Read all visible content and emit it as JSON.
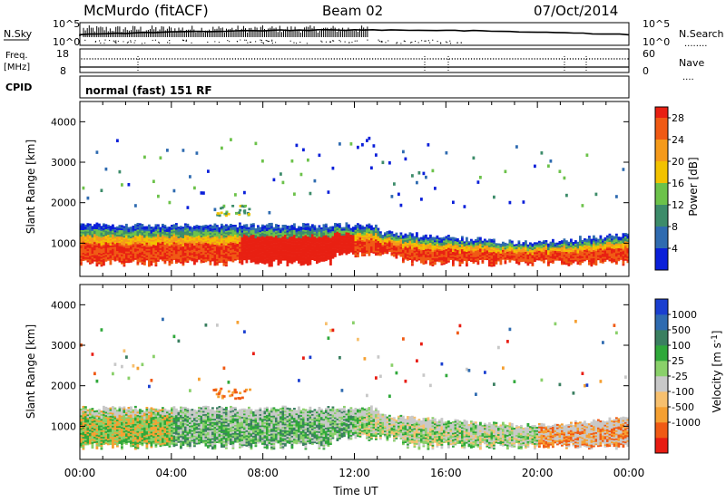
{
  "header": {
    "station": "McMurdo (fitACF)",
    "beam": "Beam 02",
    "date": "07/Oct/2014"
  },
  "top_panels": {
    "nsky_label": "N.Sky",
    "nsearch_label": "N.Search",
    "nsearch_dots": "........",
    "counts_top": "10^5",
    "counts_bottom": "10^0",
    "freq_label_1": "Freq.",
    "freq_label_2": "[MHz]",
    "freq_top": "18",
    "freq_bottom": "8",
    "nave_label": "Nave",
    "nave_dots": "....",
    "nave_top": "60",
    "nave_bottom": "0",
    "cpid_label": "CPID",
    "cpid_value": "normal (fast) 151 RF"
  },
  "colors": {
    "frame": "#000000",
    "power_scale": [
      "#0a1fd9",
      "#2f6bb0",
      "#3d8c6a",
      "#6cc24a",
      "#f2c200",
      "#f59a1a",
      "#f05a14",
      "#e82012"
    ],
    "velocity_scale": [
      "#e81c12",
      "#f05a14",
      "#f5a032",
      "#f7c06e",
      "#c8c8c8",
      "#8ad06a",
      "#2fa83a",
      "#3a7f60",
      "#2f6bb0",
      "#1a3fd0"
    ]
  },
  "chart_data": [
    {
      "type": "heatmap",
      "title": "Power",
      "ylabel": "Slant Range [km]",
      "xlabel": "Time UT",
      "xlim": [
        "00:00",
        "24:00"
      ],
      "xticks": [
        "00:00",
        "04:00",
        "08:00",
        "12:00",
        "16:00",
        "20:00",
        "00:00"
      ],
      "ylim": [
        180,
        4500
      ],
      "yticks": [
        1000,
        2000,
        3000,
        4000
      ],
      "colorbar": {
        "label": "Power [dB]",
        "ticks": [
          4,
          8,
          12,
          16,
          20,
          24,
          28
        ],
        "range": [
          0,
          30
        ]
      },
      "scatter_region": {
        "description_hours": [
          0,
          24
        ],
        "main_echo_range_km": [
          500,
          1400
        ]
      }
    },
    {
      "type": "heatmap",
      "title": "Velocity",
      "ylabel": "Slant Range [km]",
      "xlabel": "Time UT",
      "xlim": [
        "00:00",
        "24:00"
      ],
      "xticks": [
        "00:00",
        "04:00",
        "08:00",
        "12:00",
        "16:00",
        "20:00",
        "00:00"
      ],
      "ylim": [
        180,
        4500
      ],
      "yticks": [
        1000,
        2000,
        3000,
        4000
      ],
      "colorbar": {
        "label": "Velocity [m s^-1]",
        "ticks": [
          1000,
          500,
          100,
          25,
          -25,
          -100,
          -500,
          -1000
        ]
      }
    }
  ],
  "axis": {
    "xlabel": "Time UT",
    "xticks": [
      "00:00",
      "04:00",
      "08:00",
      "12:00",
      "16:00",
      "20:00",
      "00:00"
    ],
    "yticks": [
      "1000",
      "2000",
      "3000",
      "4000"
    ],
    "ylabel": "Slant Range [km]",
    "power_cb_label": "Power [dB]",
    "power_cb_ticks": [
      "4",
      "8",
      "12",
      "16",
      "20",
      "24",
      "28"
    ],
    "vel_cb_label": "Velocity [m s",
    "vel_cb_label_sup": "-1",
    "vel_cb_label_end": "]",
    "vel_cb_ticks": [
      "1000",
      "500",
      "100",
      "25",
      "-25",
      "-100",
      "-500",
      "-1000"
    ]
  }
}
